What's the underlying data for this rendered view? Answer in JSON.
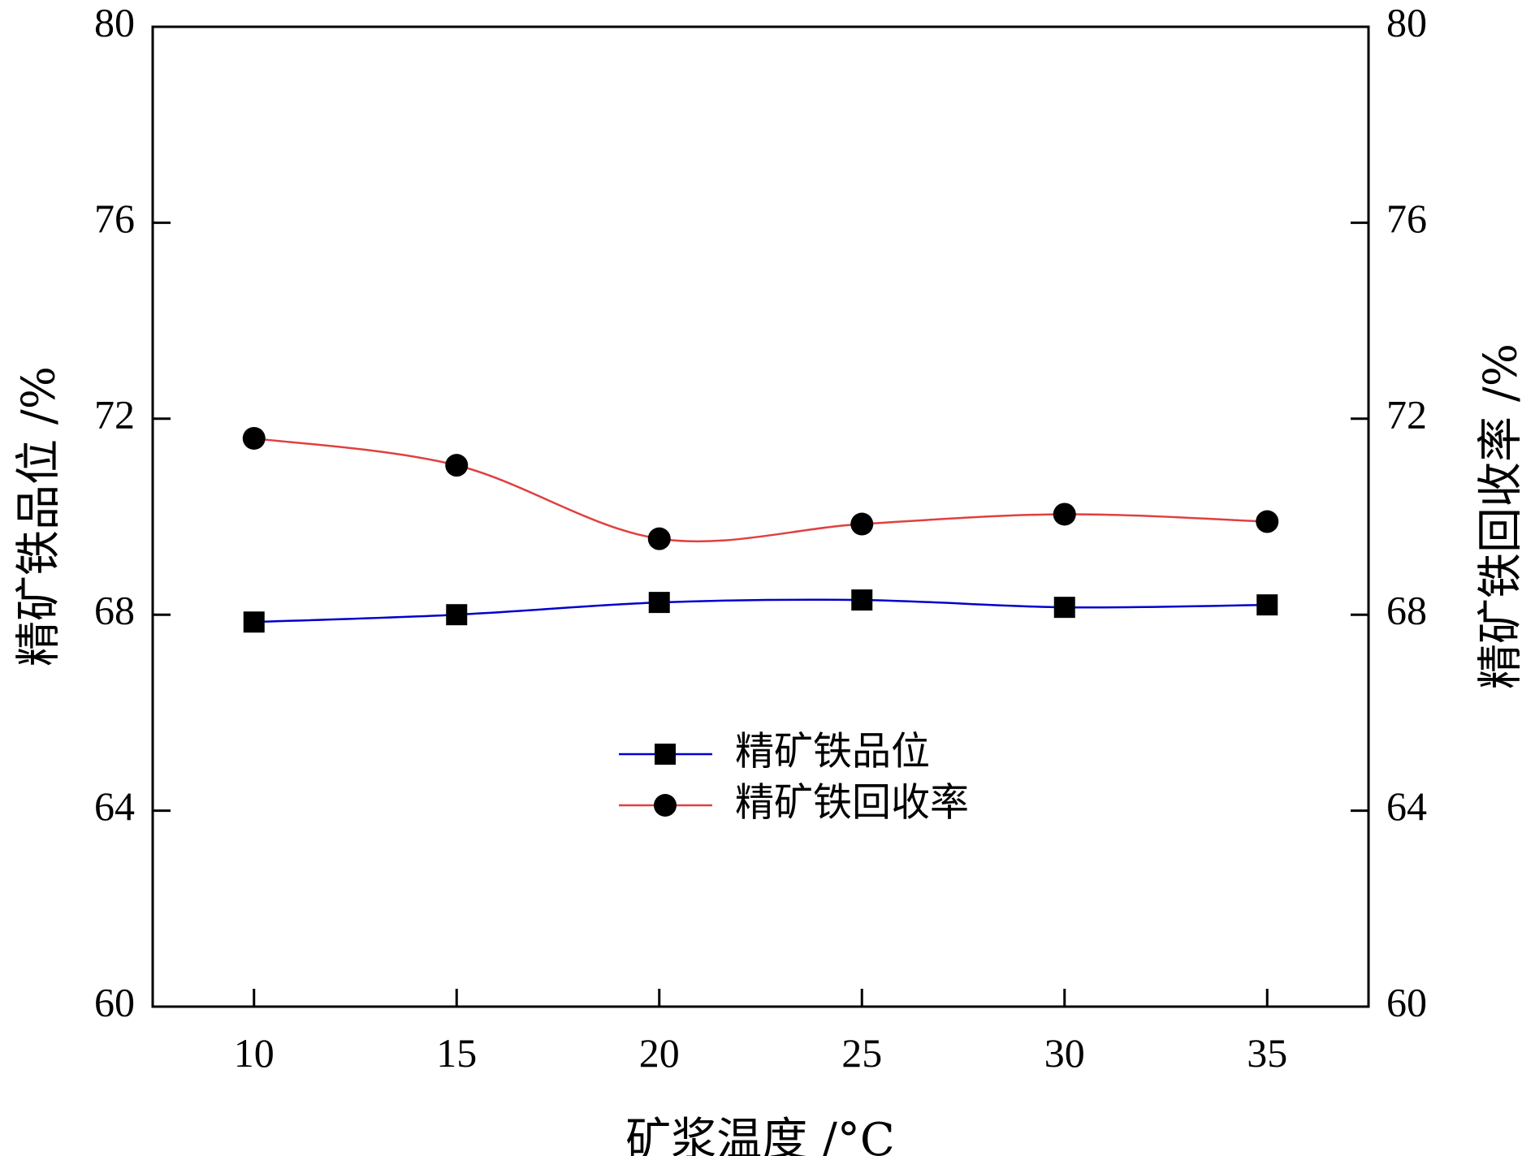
{
  "chart_data": {
    "type": "line",
    "xlabel": "矿浆温度 /°C",
    "ylabel_left": "精矿铁品位 /%",
    "ylabel_right": "精矿铁回收率 /%",
    "x": [
      10,
      15,
      20,
      25,
      30,
      35
    ],
    "xticks": [
      "10",
      "15",
      "20",
      "25",
      "30",
      "35"
    ],
    "xlim": [
      7.5,
      37.5
    ],
    "ylim": [
      60,
      80
    ],
    "yticks": [
      "60",
      "64",
      "68",
      "72",
      "76",
      "80"
    ],
    "grid": false,
    "legend_position": "center",
    "series": [
      {
        "name": "精矿铁品位",
        "axis": "left",
        "marker": "square",
        "color": "#0000cc",
        "values": [
          67.85,
          68.0,
          68.25,
          68.3,
          68.15,
          68.2
        ]
      },
      {
        "name": "精矿铁回收率",
        "axis": "right",
        "marker": "circle",
        "color": "#e04040",
        "values": [
          71.6,
          71.05,
          69.55,
          69.85,
          70.05,
          69.9
        ]
      }
    ]
  }
}
